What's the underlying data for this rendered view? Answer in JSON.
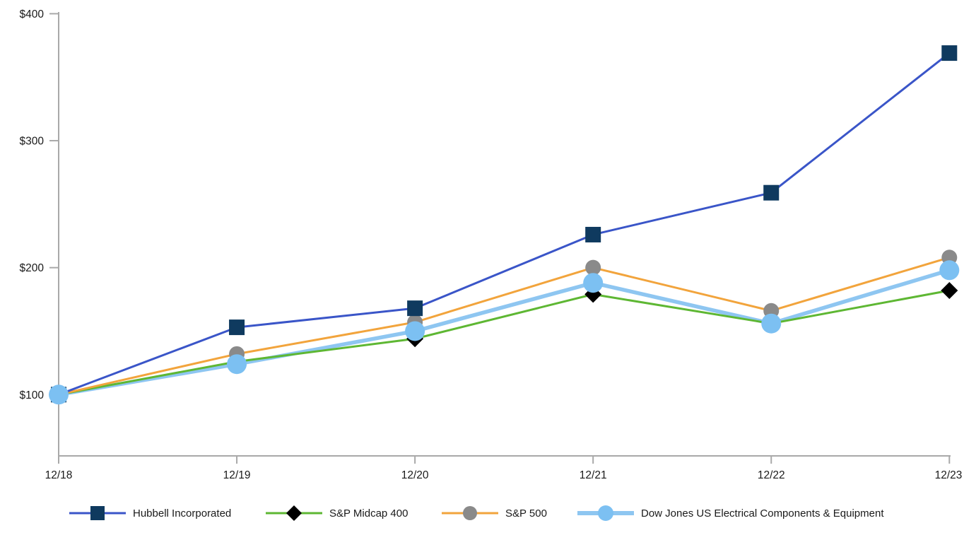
{
  "chart_data": {
    "type": "line",
    "title": "",
    "xlabel": "",
    "ylabel": "",
    "categories": [
      "12/18",
      "12/19",
      "12/20",
      "12/21",
      "12/22",
      "12/23"
    ],
    "series": [
      {
        "name": "Hubbell Incorporated",
        "values": [
          100,
          153,
          168,
          226,
          259,
          369
        ],
        "line_color": "#3A55C8",
        "marker": "square",
        "marker_color": "#0F3A5F"
      },
      {
        "name": "S&P Midcap 400",
        "values": [
          100,
          126,
          144,
          179,
          156,
          182
        ],
        "line_color": "#5EB733",
        "marker": "diamond",
        "marker_color": "#000000"
      },
      {
        "name": "S&P 500",
        "values": [
          100,
          132,
          157,
          200,
          166,
          208
        ],
        "line_color": "#F2A43C",
        "marker": "circle",
        "marker_color": "#8A8A8A"
      },
      {
        "name": "Dow Jones US Electrical Components & Equipment",
        "values": [
          100,
          124,
          150,
          188,
          156,
          198
        ],
        "line_color": "#8EC6F1",
        "marker": "circle",
        "marker_color": "#7CC0F2"
      }
    ],
    "y_axis": {
      "ticks": [
        100,
        200,
        300,
        400
      ],
      "tick_labels": [
        "$100",
        "$200",
        "$300",
        "$400"
      ],
      "range": [
        52,
        401
      ],
      "currency_prefix": "$"
    },
    "x_axis": {
      "range_note": "categorical, evenly spaced yearly points"
    },
    "grid": false,
    "legend_position": "bottom",
    "axis_color": "#A9A9A9",
    "text_color": "#1A1A1A",
    "background_color": "#FFFFFF"
  }
}
